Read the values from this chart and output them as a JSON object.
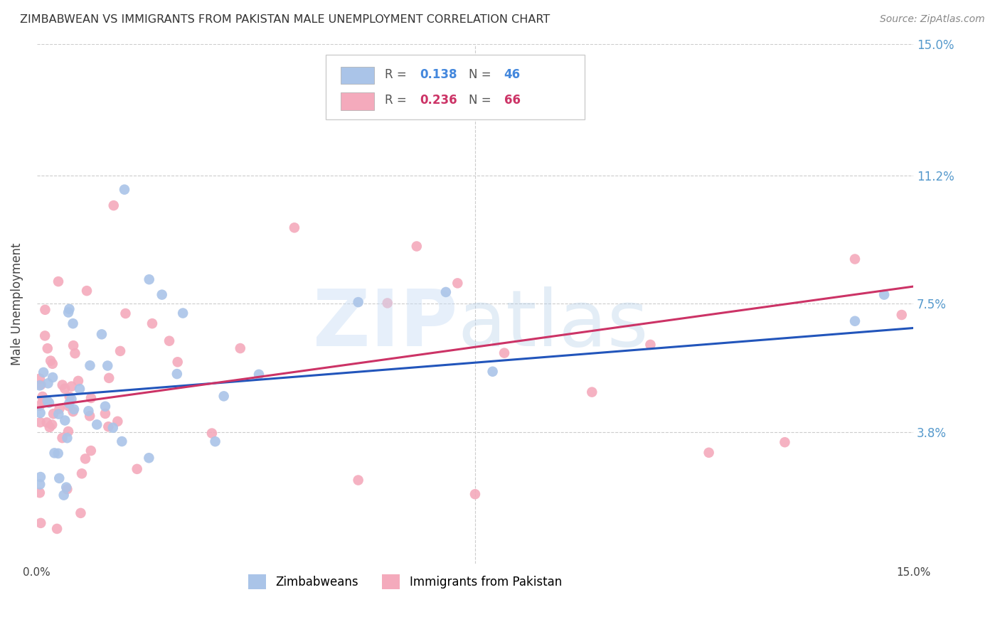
{
  "title": "ZIMBABWEAN VS IMMIGRANTS FROM PAKISTAN MALE UNEMPLOYMENT CORRELATION CHART",
  "source": "Source: ZipAtlas.com",
  "ylabel": "Male Unemployment",
  "xlim": [
    0.0,
    15.0
  ],
  "ylim": [
    0.0,
    15.0
  ],
  "yticks": [
    3.8,
    7.5,
    11.2,
    15.0
  ],
  "ytick_labels": [
    "3.8%",
    "7.5%",
    "11.2%",
    "15.0%"
  ],
  "grid_color": "#cccccc",
  "background_color": "#ffffff",
  "series": [
    {
      "label": "Zimbabweans",
      "R": 0.138,
      "N": 46,
      "color": "#aac4e8",
      "line_color": "#2255bb",
      "reg_x0": 0.0,
      "reg_y0": 4.8,
      "reg_x1": 15.0,
      "reg_y1": 6.8
    },
    {
      "label": "Immigrants from Pakistan",
      "R": 0.236,
      "N": 66,
      "color": "#f4aabc",
      "line_color": "#cc3366",
      "reg_x0": 0.0,
      "reg_y0": 4.5,
      "reg_x1": 15.0,
      "reg_y1": 8.0
    }
  ]
}
